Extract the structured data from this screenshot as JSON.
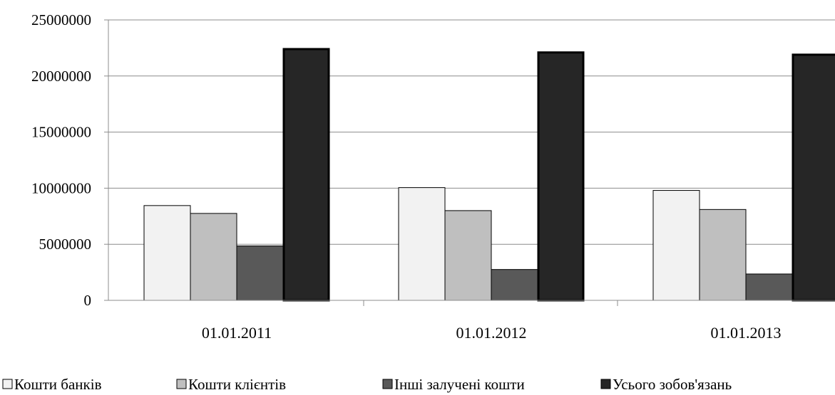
{
  "chart_data": {
    "type": "bar",
    "title": "",
    "xlabel": "",
    "ylabel": "",
    "categories": [
      "01.01.2011",
      "01.01.2012",
      "01.01.2013"
    ],
    "series": [
      {
        "name": "Кошти банків",
        "values": [
          8450000,
          10050000,
          9800000
        ],
        "color": "#f2f2f2"
      },
      {
        "name": "Кошти клієнтів",
        "values": [
          7750000,
          8000000,
          8100000
        ],
        "color": "#bfbfbf"
      },
      {
        "name": "Інші залучені кошти",
        "values": [
          4850000,
          2750000,
          2350000
        ],
        "color": "#595959"
      },
      {
        "name": "Усього зобов'язань",
        "values": [
          22400000,
          22100000,
          21900000
        ],
        "color": "#262626"
      }
    ],
    "ylim": [
      0,
      25000000
    ],
    "yticks": [
      "0",
      "5000000",
      "10000000",
      "15000000",
      "20000000",
      "25000000"
    ],
    "grid": true,
    "legend_position": "bottom"
  }
}
